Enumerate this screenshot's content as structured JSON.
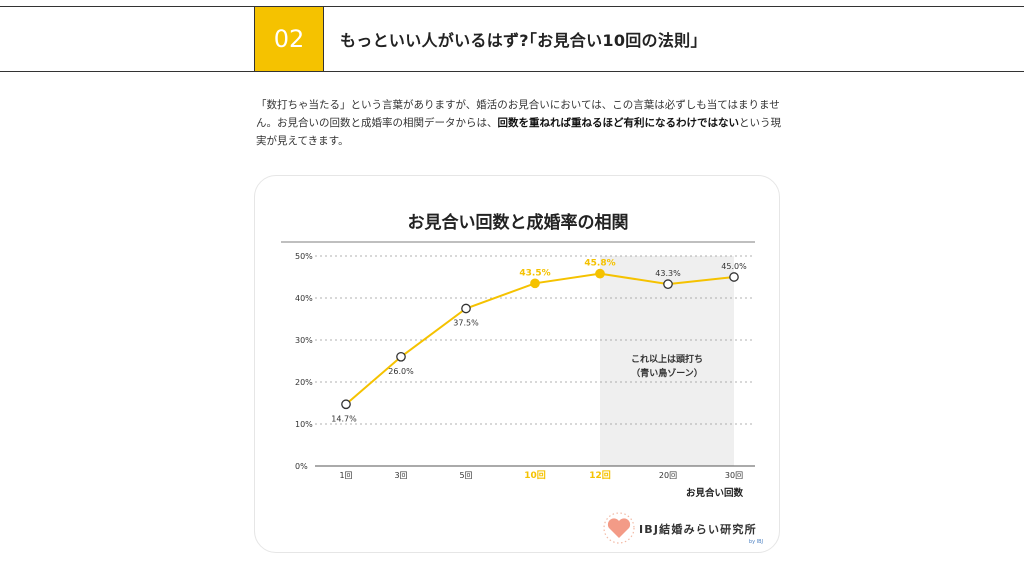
{
  "header": {
    "number": "02",
    "title": "もっといい人がいるはず?｢お見合い10回の法則｣"
  },
  "intro": {
    "part1": "「数打ちゃ当たる」という言葉がありますが、婚活のお見合いにおいては、この言葉は必ずしも当てはまりません。お見合いの回数と成婚率の相関データからは、",
    "bold": "回数を重ねれば重ねるほど有利になるわけではない",
    "part2": "という現実が見えてきます。"
  },
  "chart_data": {
    "type": "line",
    "title": "お見合い回数と成婚率の相関",
    "xlabel": "お見合い回数",
    "ylabel": "",
    "categories": [
      "1回",
      "3回",
      "5回",
      "10回",
      "12回",
      "20回",
      "30回"
    ],
    "series": [
      {
        "values": [
          14.7,
          26.0,
          37.5,
          43.5,
          45.8,
          43.3,
          45.0
        ]
      }
    ],
    "data_labels": [
      "14.7%",
      "26.0%",
      "37.5%",
      "43.5%",
      "45.8%",
      "43.3%",
      "45.0%"
    ],
    "highlighted_categories": [
      "10回",
      "12回"
    ],
    "y_ticks": [
      "0%",
      "10%",
      "20%",
      "30%",
      "40%",
      "50%"
    ],
    "ylim": [
      0,
      50
    ],
    "grid": true,
    "shaded_zone": {
      "from_category": "12回",
      "to_category": "30回",
      "label_line1": "これ以上は頭打ち",
      "label_line2": "（青い鳥ゾーン）"
    },
    "colors": {
      "line": "#f5c200",
      "highlight": "#f5c200",
      "zone": "#efefef",
      "text": "#333333"
    }
  },
  "logo": {
    "text": "IBJ結婚みらい研究所",
    "sub": "by IBJ"
  }
}
